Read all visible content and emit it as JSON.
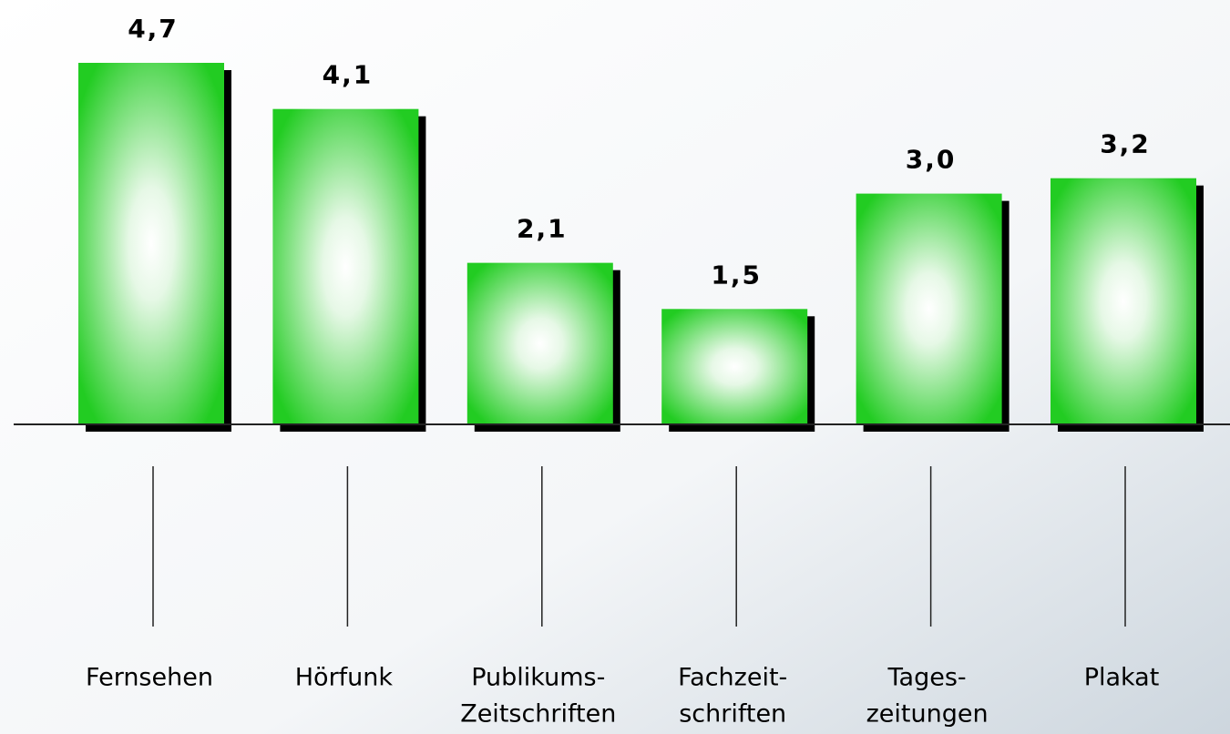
{
  "chart_data": {
    "type": "bar",
    "categories": [
      [
        "Fernsehen"
      ],
      [
        "Hörfunk"
      ],
      [
        "Publikums-",
        "Zeitschriften"
      ],
      [
        "Fachzeit-",
        "schriften"
      ],
      [
        "Tages-",
        "zeitungen"
      ],
      [
        "Plakat"
      ]
    ],
    "values": [
      4.7,
      4.1,
      2.1,
      1.5,
      3.0,
      3.2
    ],
    "value_labels": [
      "4,7",
      "4,1",
      "2,1",
      "1,5",
      "3,0",
      "3,2"
    ],
    "color": "#22cc22"
  }
}
